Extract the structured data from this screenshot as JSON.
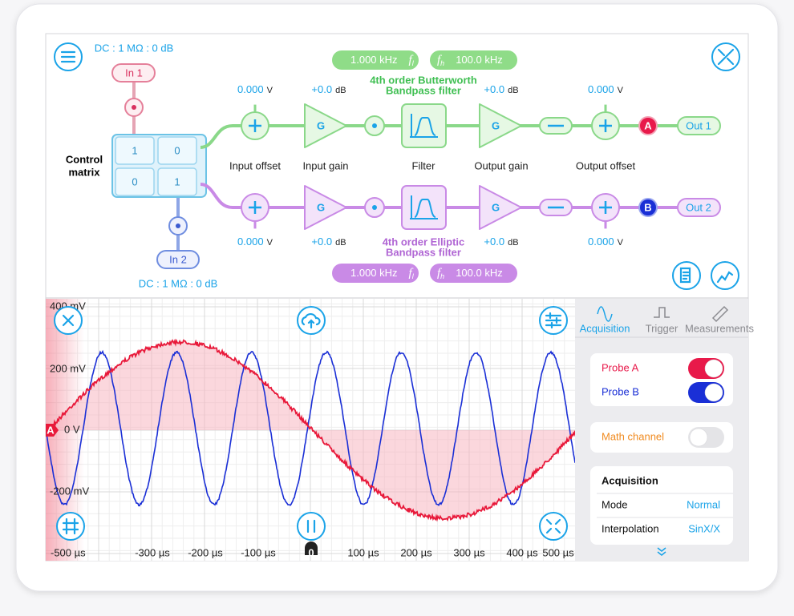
{
  "inputs": [
    {
      "label": "In 1",
      "coupling": "DC : 1 MΩ : 0 dB"
    },
    {
      "label": "In 2",
      "coupling": "DC : 1 MΩ : 0 dB"
    }
  ],
  "control_matrix": {
    "label": [
      "Control",
      "matrix"
    ],
    "cells": [
      [
        "1",
        "0"
      ],
      [
        "0",
        "1"
      ]
    ]
  },
  "stage_labels": [
    "Input offset",
    "Input gain",
    "Filter",
    "Output gain",
    "Output offset"
  ],
  "channels": [
    {
      "input_offset": {
        "value": "0.000",
        "unit": "V"
      },
      "input_gain": {
        "value": "+0.0",
        "unit": "dB"
      },
      "gain_symbol": "G",
      "filter": [
        "4th order Butterworth",
        "Bandpass filter"
      ],
      "f_low": {
        "value": "1.000 kHz",
        "symbol": "f",
        "sub": "l"
      },
      "f_high": {
        "value": "100.0 kHz",
        "symbol": "f",
        "sub": "h"
      },
      "output_gain": {
        "value": "+0.0",
        "unit": "dB"
      },
      "output_offset": {
        "value": "0.000",
        "unit": "V"
      },
      "probe": "A",
      "output": "Out 1"
    },
    {
      "input_offset": {
        "value": "0.000",
        "unit": "V"
      },
      "input_gain": {
        "value": "+0.0",
        "unit": "dB"
      },
      "gain_symbol": "G",
      "filter": [
        "4th order Elliptic",
        "Bandpass filter"
      ],
      "f_low": {
        "value": "1.000 kHz",
        "symbol": "f",
        "sub": "l"
      },
      "f_high": {
        "value": "100.0 kHz",
        "symbol": "f",
        "sub": "h"
      },
      "output_gain": {
        "value": "+0.0",
        "unit": "dB"
      },
      "output_offset": {
        "value": "0.000",
        "unit": "V"
      },
      "probe": "B",
      "output": "Out 2"
    }
  ],
  "scope": {
    "y_labels": [
      "400 mV",
      "200 mV",
      "0 V",
      "-200 mV"
    ],
    "x_labels": [
      "-500 µs",
      "-300 µs",
      "-200 µs",
      "-100 µs",
      "0",
      "100 µs",
      "200 µs",
      "300 µs",
      "400 µs",
      "500 µs"
    ],
    "channel_marker": "A"
  },
  "side_panel": {
    "tabs": [
      {
        "label": "Acquisition",
        "active": true
      },
      {
        "label": "Trigger",
        "active": false
      },
      {
        "label": "Measurements",
        "active": false
      }
    ],
    "probes": [
      {
        "name": "Probe A",
        "on": true,
        "color": "#e8194a"
      },
      {
        "name": "Probe B",
        "on": true,
        "color": "#1a2fd6"
      }
    ],
    "math_channel": {
      "name": "Math channel",
      "on": false,
      "color": "#f08a1e"
    },
    "acquisition": {
      "title": "Acquisition",
      "rows": [
        {
          "label": "Mode",
          "value": "Normal"
        },
        {
          "label": "Interpolation",
          "value": "SinX/X"
        }
      ]
    }
  }
}
